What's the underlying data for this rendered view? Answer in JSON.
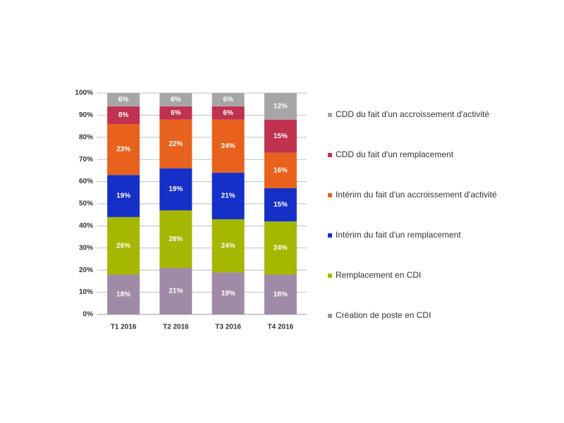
{
  "chart_data": {
    "type": "stacked_bar",
    "categories": [
      "T1 2016",
      "T2 2016",
      "T3 2016",
      "T4 2016"
    ],
    "series": [
      {
        "name": "Création de poste en CDI",
        "color": "#a08aa8",
        "values": [
          18,
          21,
          19,
          18
        ],
        "value_labels": [
          "18%",
          "21%",
          "19%",
          "18%"
        ]
      },
      {
        "name": "Remplacement en CDI",
        "color": "#a5b700",
        "values": [
          26,
          26,
          24,
          24
        ],
        "value_labels": [
          "26%",
          "26%",
          "24%",
          "24%"
        ]
      },
      {
        "name": "Intérim du fait d'un remplacement",
        "color": "#1530c8",
        "values": [
          19,
          19,
          21,
          15
        ],
        "value_labels": [
          "19%",
          "19%",
          "21%",
          "15%"
        ]
      },
      {
        "name": "Intérim du fait d'un accroissement d'activité",
        "color": "#e8621e",
        "values": [
          23,
          22,
          24,
          16
        ],
        "value_labels": [
          "23%",
          "22%",
          "24%",
          "16%"
        ]
      },
      {
        "name": "CDD du fait d'un remplacement",
        "color": "#c0324f",
        "values": [
          8,
          6,
          6,
          15
        ],
        "value_labels": [
          "8%",
          "6%",
          "6%",
          "15%"
        ]
      },
      {
        "name": "CDD du fait d'un accroissement d'activité",
        "color": "#a6a6a6",
        "values": [
          6,
          6,
          6,
          12
        ],
        "value_labels": [
          "6%",
          "6%",
          "6%",
          "12%"
        ]
      }
    ],
    "ylim": [
      0,
      100
    ],
    "yticks": [
      {
        "value": 0,
        "label": "0%"
      },
      {
        "value": 10,
        "label": "10%"
      },
      {
        "value": 20,
        "label": "20%"
      },
      {
        "value": 30,
        "label": "30%"
      },
      {
        "value": 40,
        "label": "40%"
      },
      {
        "value": 50,
        "label": "50%"
      },
      {
        "value": 60,
        "label": "60%"
      },
      {
        "value": 70,
        "label": "70%"
      },
      {
        "value": 80,
        "label": "80%"
      },
      {
        "value": 90,
        "label": "90%"
      },
      {
        "value": 100,
        "label": "100%"
      }
    ],
    "grid": true,
    "legend": "right"
  }
}
